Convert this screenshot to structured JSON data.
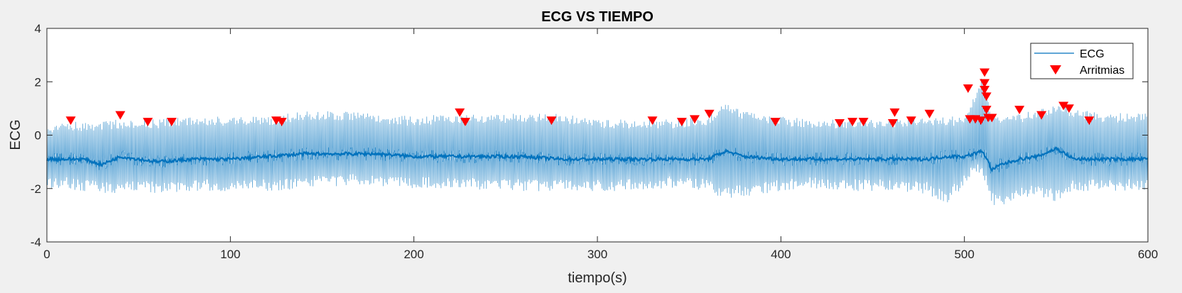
{
  "colors": {
    "background": "#f0f0f0",
    "axes_bg": "#ffffff",
    "ecg_line": "#0072bd",
    "marker": "#ff0000",
    "grid": "#000000"
  },
  "chart_data": {
    "type": "line",
    "title": "ECG VS TIEMPO",
    "xlabel": "tiempo(s)",
    "ylabel": "ECG",
    "xlim": [
      0,
      600
    ],
    "ylim": [
      -4,
      4
    ],
    "xticks": [
      0,
      100,
      200,
      300,
      400,
      500,
      600
    ],
    "yticks": [
      -4,
      -2,
      0,
      2,
      4
    ],
    "grid": "off",
    "legend_location": "top-right",
    "series": [
      {
        "name": "ECG",
        "type": "line",
        "description_points": {
          "t": [
            0,
            10,
            20,
            30,
            40,
            50,
            60,
            80,
            100,
            120,
            140,
            160,
            180,
            200,
            220,
            240,
            260,
            280,
            300,
            320,
            340,
            360,
            370,
            380,
            400,
            420,
            440,
            460,
            480,
            490,
            500,
            505,
            510,
            515,
            520,
            530,
            540,
            550,
            560,
            580,
            600
          ],
          "baseline": [
            -0.9,
            -0.9,
            -0.9,
            -1.1,
            -0.8,
            -0.9,
            -1.0,
            -0.9,
            -0.9,
            -0.8,
            -0.7,
            -0.7,
            -0.7,
            -0.8,
            -0.8,
            -0.8,
            -0.8,
            -0.9,
            -0.9,
            -0.9,
            -0.9,
            -0.9,
            -0.6,
            -0.8,
            -0.9,
            -0.9,
            -0.9,
            -0.9,
            -0.9,
            -0.8,
            -0.8,
            -0.7,
            -0.6,
            -1.3,
            -1.1,
            -0.9,
            -0.8,
            -0.5,
            -0.9,
            -0.9,
            -0.9
          ],
          "upper": [
            0.4,
            0.5,
            0.5,
            0.5,
            0.6,
            0.6,
            0.6,
            0.7,
            0.7,
            0.7,
            0.9,
            0.9,
            0.8,
            0.7,
            0.8,
            0.8,
            0.8,
            0.8,
            0.6,
            0.6,
            0.6,
            0.7,
            1.2,
            0.9,
            0.7,
            0.6,
            0.6,
            0.6,
            0.7,
            0.7,
            0.7,
            1.5,
            2.3,
            0.8,
            0.8,
            0.8,
            1.0,
            1.2,
            1.0,
            0.8,
            0.9
          ],
          "lower": [
            -2.0,
            -2.0,
            -2.1,
            -2.2,
            -2.2,
            -2.1,
            -2.2,
            -2.1,
            -2.1,
            -2.1,
            -2.0,
            -1.9,
            -1.9,
            -2.0,
            -2.0,
            -2.1,
            -2.1,
            -2.1,
            -2.1,
            -2.1,
            -2.0,
            -2.1,
            -2.4,
            -2.3,
            -2.1,
            -2.0,
            -2.1,
            -2.1,
            -2.2,
            -2.6,
            -1.9,
            -1.5,
            -1.6,
            -2.6,
            -2.7,
            -2.4,
            -2.3,
            -2.5,
            -2.1,
            -2.1,
            -2.1
          ]
        }
      },
      {
        "name": "Arritmias",
        "type": "scatter",
        "marker": "triangle-down",
        "points": [
          [
            13,
            0.55
          ],
          [
            40,
            0.75
          ],
          [
            55,
            0.5
          ],
          [
            68,
            0.5
          ],
          [
            125,
            0.55
          ],
          [
            128,
            0.5
          ],
          [
            225,
            0.85
          ],
          [
            228,
            0.5
          ],
          [
            275,
            0.55
          ],
          [
            330,
            0.55
          ],
          [
            346,
            0.5
          ],
          [
            353,
            0.6
          ],
          [
            361,
            0.8
          ],
          [
            397,
            0.5
          ],
          [
            432,
            0.45
          ],
          [
            439,
            0.5
          ],
          [
            445,
            0.5
          ],
          [
            461,
            0.45
          ],
          [
            462,
            0.85
          ],
          [
            471,
            0.55
          ],
          [
            481,
            0.8
          ],
          [
            502,
            1.75
          ],
          [
            503,
            0.6
          ],
          [
            506,
            0.6
          ],
          [
            509,
            0.55
          ],
          [
            511,
            2.35
          ],
          [
            511,
            1.95
          ],
          [
            511,
            1.7
          ],
          [
            512,
            1.45
          ],
          [
            512,
            0.95
          ],
          [
            513,
            0.65
          ],
          [
            515,
            0.65
          ],
          [
            530,
            0.95
          ],
          [
            542,
            0.75
          ],
          [
            554,
            1.1
          ],
          [
            557,
            1.0
          ],
          [
            568,
            0.55
          ]
        ]
      }
    ]
  }
}
